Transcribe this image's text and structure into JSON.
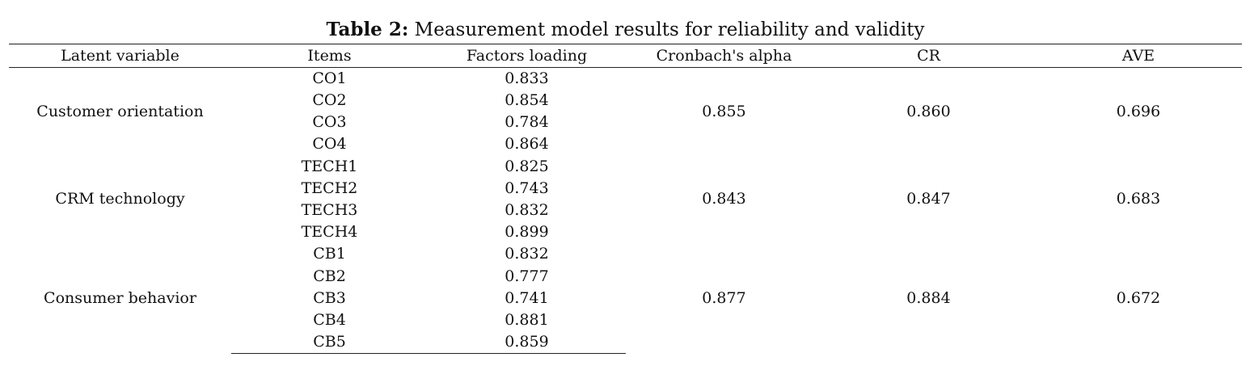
{
  "caption": {
    "label": "Table 2:",
    "text": " Measurement model results for reliability and validity"
  },
  "headers": [
    "Latent variable",
    "Items",
    "Factors loading",
    "Cronbach's alpha",
    "CR",
    "AVE"
  ],
  "groups": [
    {
      "latent": "Customer orientation",
      "alpha": "0.855",
      "cr": "0.860",
      "ave": "0.696",
      "items": [
        {
          "item": "CO1",
          "loading": "0.833"
        },
        {
          "item": "CO2",
          "loading": "0.854"
        },
        {
          "item": "CO3",
          "loading": "0.784"
        },
        {
          "item": "CO4",
          "loading": "0.864"
        }
      ]
    },
    {
      "latent": "CRM technology",
      "alpha": "0.843",
      "cr": "0.847",
      "ave": "0.683",
      "items": [
        {
          "item": "TECH1",
          "loading": "0.825"
        },
        {
          "item": "TECH2",
          "loading": "0.743"
        },
        {
          "item": "TECH3",
          "loading": "0.832"
        },
        {
          "item": "TECH4",
          "loading": "0.899"
        }
      ]
    },
    {
      "latent": "Consumer behavior",
      "alpha": "0.877",
      "cr": "0.884",
      "ave": "0.672",
      "items": [
        {
          "item": "CB1",
          "loading": "0.832"
        },
        {
          "item": "CB2",
          "loading": "0.777"
        },
        {
          "item": "CB3",
          "loading": "0.741"
        },
        {
          "item": "CB4",
          "loading": "0.881"
        },
        {
          "item": "CB5",
          "loading": "0.859"
        }
      ]
    }
  ]
}
